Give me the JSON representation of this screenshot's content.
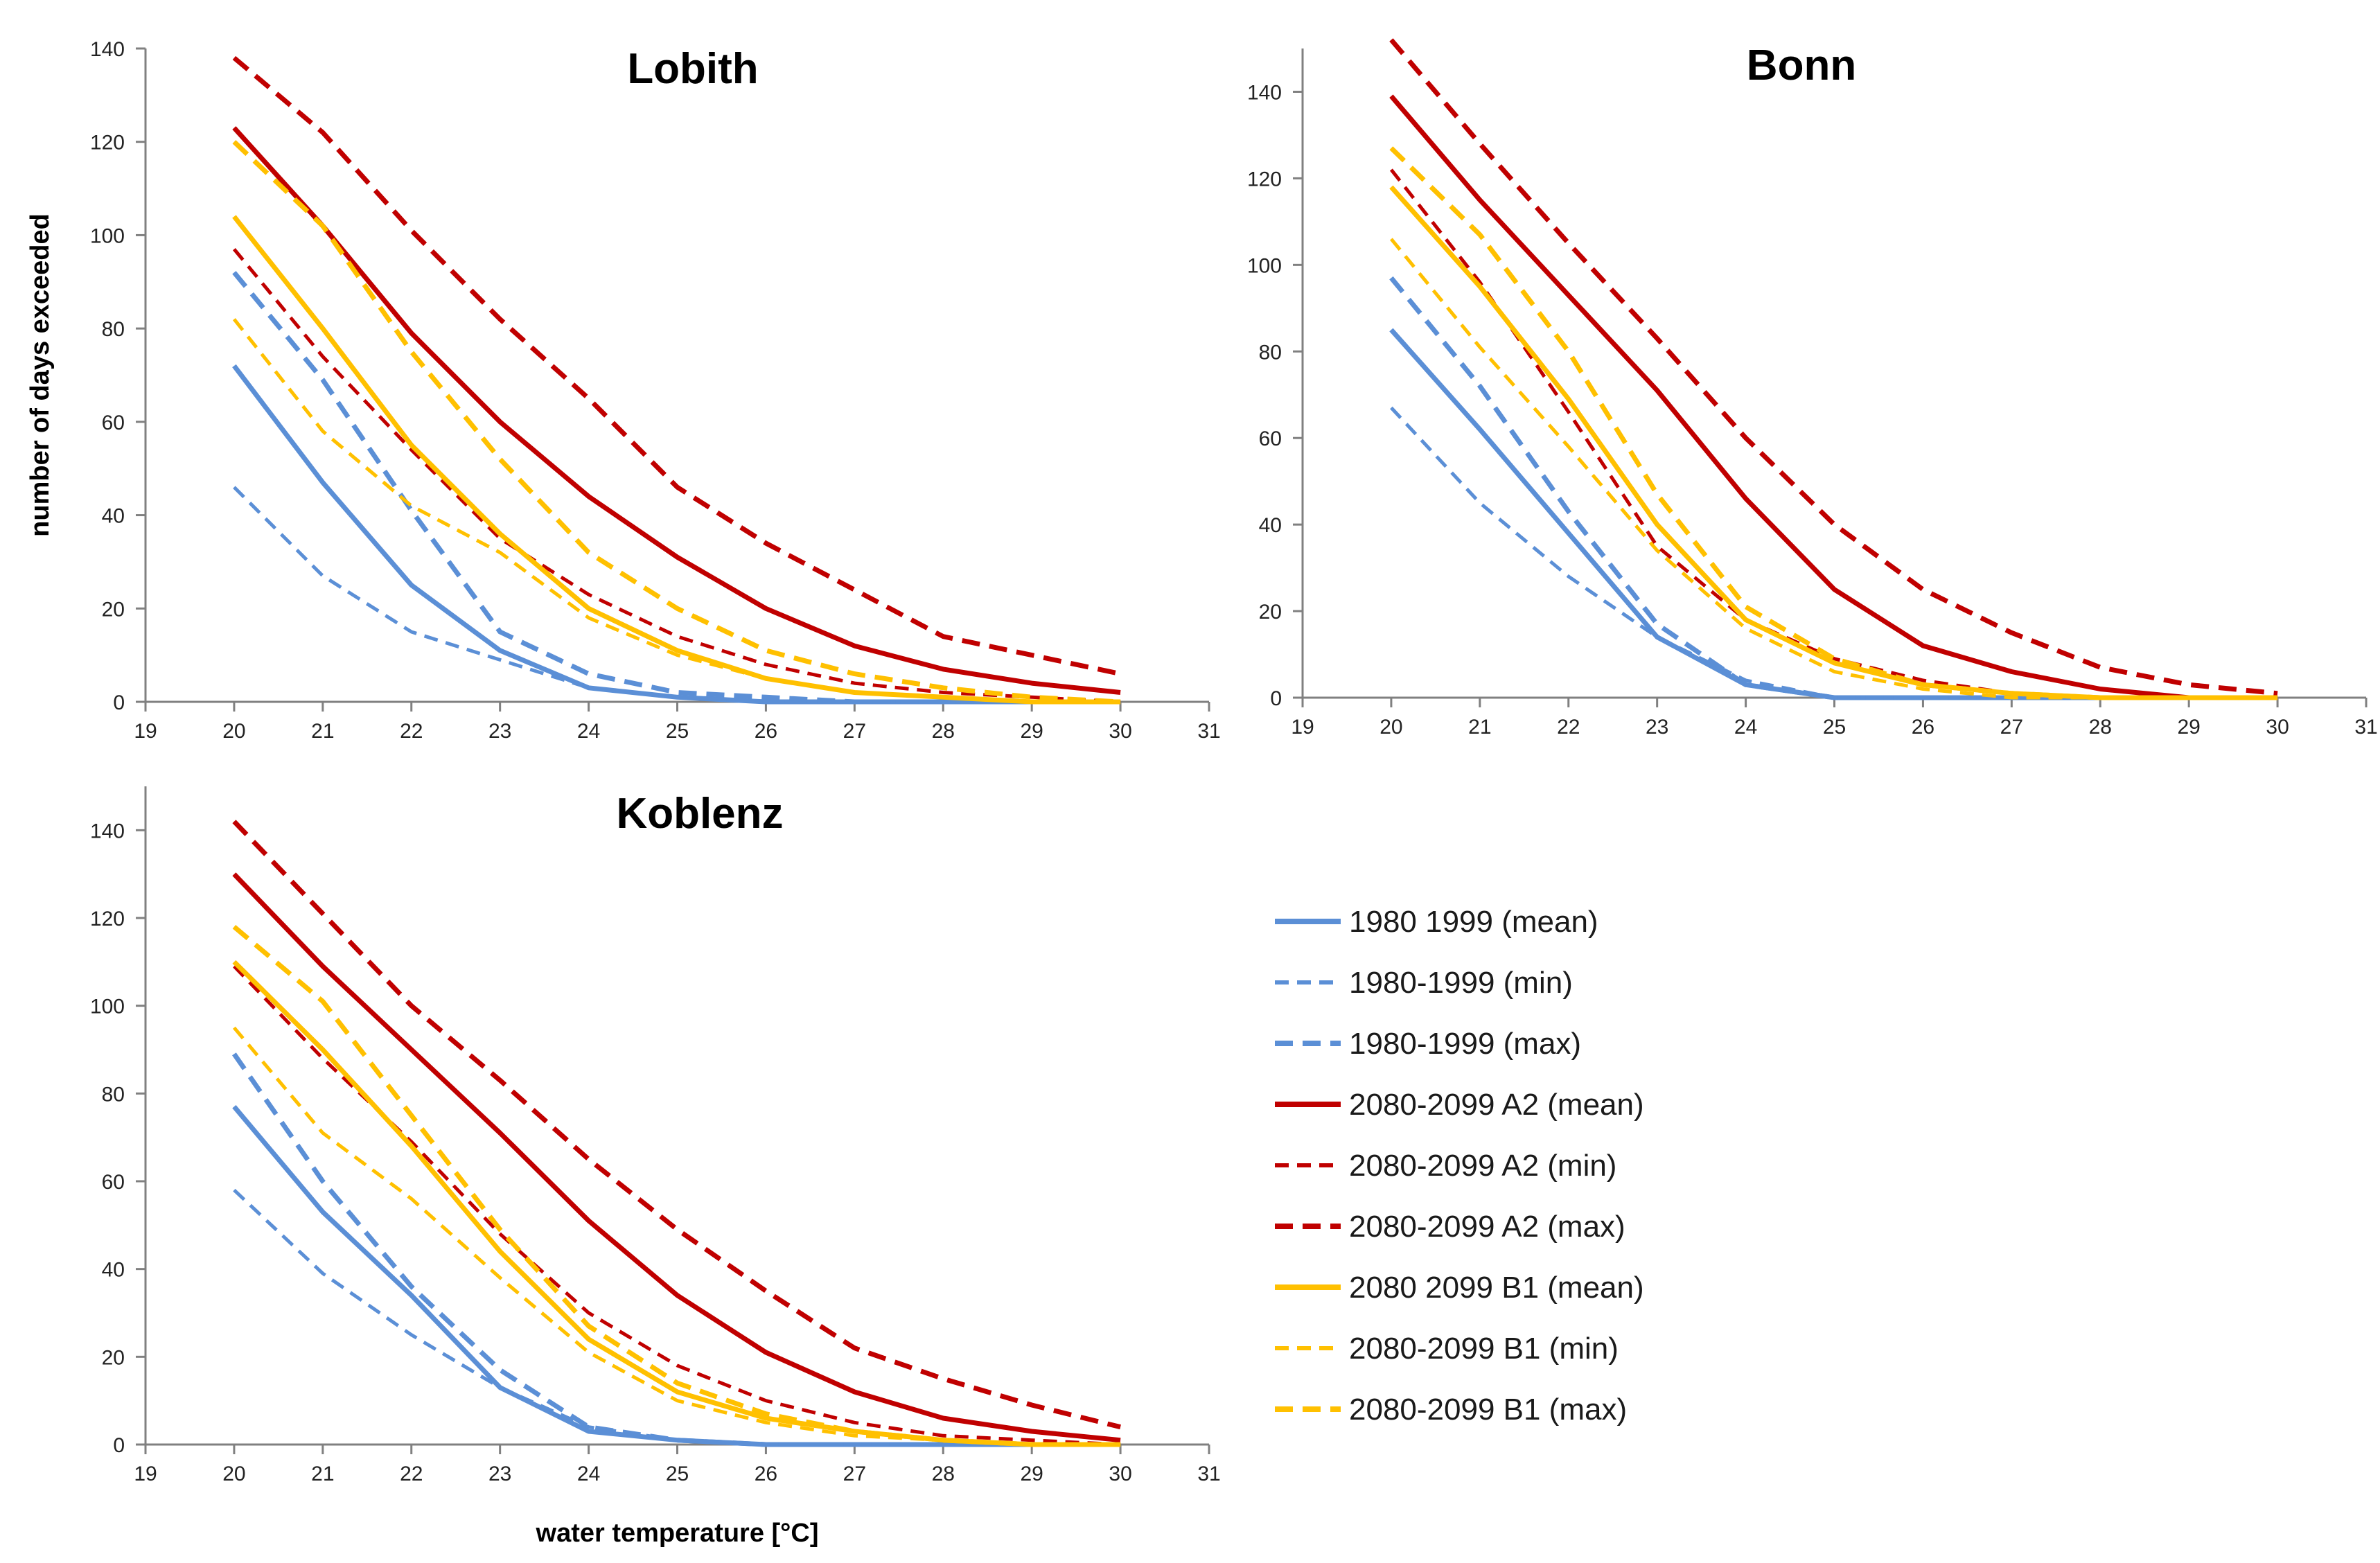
{
  "series_styles": [
    {
      "key": "obs_mean",
      "color": "#5b8fd6",
      "dash": "solid",
      "width": "thick"
    },
    {
      "key": "obs_min",
      "color": "#5b8fd6",
      "dash": "dashed",
      "width": "thin"
    },
    {
      "key": "obs_max",
      "color": "#5b8fd6",
      "dash": "dashed",
      "width": "thick"
    },
    {
      "key": "a2_mean",
      "color": "#c00000",
      "dash": "solid",
      "width": "thick"
    },
    {
      "key": "a2_min",
      "color": "#c00000",
      "dash": "dashed",
      "width": "thin"
    },
    {
      "key": "a2_max",
      "color": "#c00000",
      "dash": "dashed",
      "width": "thick"
    },
    {
      "key": "b1_mean",
      "color": "#ffc000",
      "dash": "solid",
      "width": "thick"
    },
    {
      "key": "b1_min",
      "color": "#ffc000",
      "dash": "dashed",
      "width": "thin"
    },
    {
      "key": "b1_max",
      "color": "#ffc000",
      "dash": "dashed",
      "width": "thick"
    }
  ],
  "legend": {
    "entries": [
      "1980 1999 (mean)",
      "1980-1999 (min)",
      "1980-1999 (max)",
      "2080-2099 A2 (mean)",
      "2080-2099 A2 (min)",
      "2080-2099 A2 (max)",
      "2080 2099 B1 (mean)",
      "2080-2099 B1 (min)",
      "2080-2099 B1 (max)"
    ]
  },
  "chart_data": [
    {
      "type": "line",
      "title": "Lobith",
      "xlabel": "",
      "ylabel": "number of days exceeded",
      "xlim": [
        19,
        31
      ],
      "ylim": [
        0,
        140
      ],
      "xticks": [
        19,
        20,
        21,
        22,
        23,
        24,
        25,
        26,
        27,
        28,
        29,
        30,
        31
      ],
      "yticks": [
        0,
        20,
        40,
        60,
        80,
        100,
        120,
        140
      ],
      "x": [
        20,
        21,
        22,
        23,
        24,
        25,
        26,
        27,
        28,
        29,
        30
      ],
      "series": [
        {
          "style": "obs_mean",
          "values": [
            72,
            47,
            25,
            11,
            3,
            1,
            0,
            0,
            0,
            0,
            0
          ]
        },
        {
          "style": "obs_min",
          "values": [
            46,
            27,
            15,
            9,
            3,
            1,
            0,
            0,
            0,
            0,
            0
          ]
        },
        {
          "style": "obs_max",
          "values": [
            92,
            69,
            41,
            15,
            6,
            2,
            1,
            0,
            0,
            0,
            0
          ]
        },
        {
          "style": "a2_mean",
          "values": [
            123,
            102,
            79,
            60,
            44,
            31,
            20,
            12,
            7,
            4,
            2
          ]
        },
        {
          "style": "a2_min",
          "values": [
            97,
            74,
            54,
            35,
            23,
            14,
            8,
            4,
            2,
            1,
            0
          ]
        },
        {
          "style": "a2_max",
          "values": [
            138,
            122,
            101,
            82,
            65,
            46,
            34,
            24,
            14,
            10,
            6
          ]
        },
        {
          "style": "b1_mean",
          "values": [
            104,
            80,
            55,
            36,
            20,
            11,
            5,
            2,
            1,
            0,
            0
          ]
        },
        {
          "style": "b1_min",
          "values": [
            82,
            58,
            42,
            32,
            18,
            10,
            5,
            2,
            1,
            0,
            0
          ]
        },
        {
          "style": "b1_max",
          "values": [
            120,
            102,
            75,
            52,
            32,
            20,
            11,
            6,
            3,
            1,
            0
          ]
        }
      ]
    },
    {
      "type": "line",
      "title": "Bonn",
      "xlabel": "",
      "ylabel": "",
      "xlim": [
        19,
        31
      ],
      "ylim": [
        0,
        150
      ],
      "xticks": [
        19,
        20,
        21,
        22,
        23,
        24,
        25,
        26,
        27,
        28,
        29,
        30,
        31
      ],
      "yticks": [
        0,
        20,
        40,
        60,
        80,
        100,
        120,
        140
      ],
      "x": [
        20,
        21,
        22,
        23,
        24,
        25,
        26,
        27,
        28,
        29,
        30
      ],
      "series": [
        {
          "style": "obs_mean",
          "values": [
            85,
            62,
            38,
            14,
            3,
            0,
            0,
            0,
            0,
            0,
            0
          ]
        },
        {
          "style": "obs_min",
          "values": [
            67,
            45,
            28,
            14,
            4,
            0,
            0,
            0,
            0,
            0,
            0
          ]
        },
        {
          "style": "obs_max",
          "values": [
            97,
            72,
            43,
            17,
            3,
            0,
            0,
            0,
            0,
            0,
            0
          ]
        },
        {
          "style": "a2_mean",
          "values": [
            139,
            115,
            93,
            71,
            46,
            25,
            12,
            6,
            2,
            0,
            0
          ]
        },
        {
          "style": "a2_min",
          "values": [
            122,
            96,
            66,
            35,
            18,
            9,
            4,
            1,
            0,
            0,
            0
          ]
        },
        {
          "style": "a2_max",
          "values": [
            152,
            128,
            105,
            83,
            60,
            40,
            25,
            15,
            7,
            3,
            1
          ]
        },
        {
          "style": "b1_mean",
          "values": [
            118,
            95,
            69,
            40,
            18,
            8,
            3,
            1,
            0,
            0,
            0
          ]
        },
        {
          "style": "b1_min",
          "values": [
            106,
            81,
            58,
            34,
            16,
            6,
            2,
            0,
            0,
            0,
            0
          ]
        },
        {
          "style": "b1_max",
          "values": [
            127,
            107,
            80,
            47,
            21,
            9,
            3,
            1,
            0,
            0,
            0
          ]
        }
      ]
    },
    {
      "type": "line",
      "title": "Koblenz",
      "xlabel": "water temperature [°C]",
      "ylabel": "",
      "xlim": [
        19,
        31
      ],
      "ylim": [
        0,
        150
      ],
      "xticks": [
        19,
        20,
        21,
        22,
        23,
        24,
        25,
        26,
        27,
        28,
        29,
        30,
        31
      ],
      "yticks": [
        0,
        20,
        40,
        60,
        80,
        100,
        120,
        140
      ],
      "x": [
        20,
        21,
        22,
        23,
        24,
        25,
        26,
        27,
        28,
        29,
        30
      ],
      "series": [
        {
          "style": "obs_mean",
          "values": [
            77,
            53,
            34,
            13,
            3,
            1,
            0,
            0,
            0,
            0,
            0
          ]
        },
        {
          "style": "obs_min",
          "values": [
            58,
            39,
            25,
            13,
            4,
            1,
            0,
            0,
            0,
            0,
            0
          ]
        },
        {
          "style": "obs_max",
          "values": [
            89,
            60,
            36,
            17,
            4,
            1,
            0,
            0,
            0,
            0,
            0
          ]
        },
        {
          "style": "a2_mean",
          "values": [
            130,
            109,
            90,
            71,
            51,
            34,
            21,
            12,
            6,
            3,
            1
          ]
        },
        {
          "style": "a2_min",
          "values": [
            109,
            88,
            69,
            48,
            30,
            18,
            10,
            5,
            2,
            1,
            0
          ]
        },
        {
          "style": "a2_max",
          "values": [
            142,
            121,
            100,
            83,
            65,
            49,
            35,
            22,
            15,
            9,
            4
          ]
        },
        {
          "style": "b1_mean",
          "values": [
            110,
            90,
            68,
            44,
            24,
            12,
            6,
            3,
            1,
            0,
            0
          ]
        },
        {
          "style": "b1_min",
          "values": [
            95,
            71,
            56,
            38,
            21,
            10,
            5,
            2,
            1,
            0,
            0
          ]
        },
        {
          "style": "b1_max",
          "values": [
            118,
            101,
            75,
            49,
            27,
            14,
            7,
            3,
            1,
            0,
            0
          ]
        }
      ]
    }
  ]
}
